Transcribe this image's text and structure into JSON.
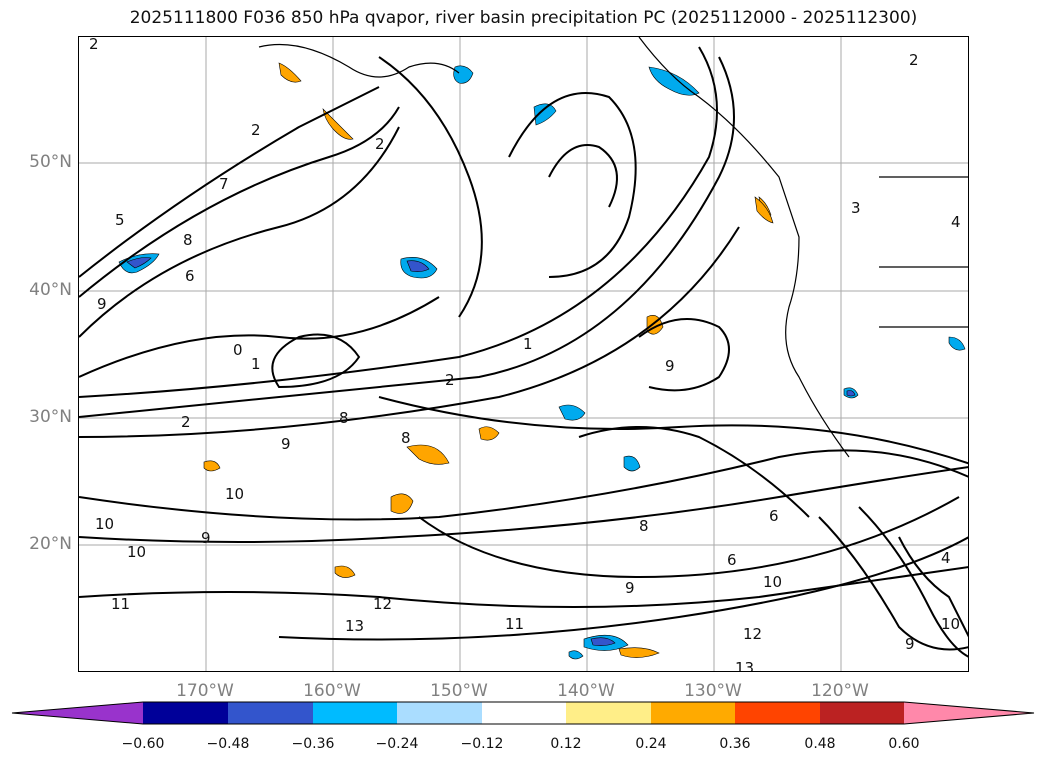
{
  "title": "2025111800 F036 850 hPa qvapor, river basin precipitation PC (2025112000 - 2025112300)",
  "lat_labels": [
    "50°N",
    "40°N",
    "30°N",
    "20°N"
  ],
  "lon_labels": [
    "170°W",
    "160°W",
    "150°W",
    "140°W",
    "130°W",
    "120°W"
  ],
  "colorbar": {
    "tick_labels": [
      "−0.60",
      "−0.48",
      "−0.36",
      "−0.24",
      "−0.12",
      "0.12",
      "0.24",
      "0.36",
      "0.48",
      "0.60"
    ],
    "under_color": "#9933cc",
    "over_color": "#ff88aa",
    "colors": [
      "#000099",
      "#3355cc",
      "#00bbff",
      "#aaddff",
      "#ffffff",
      "#ffee88",
      "#ffaa00",
      "#ff4400",
      "#bb2222"
    ]
  },
  "contour_labels": [
    "2",
    "2",
    "2",
    "2",
    "7",
    "5",
    "8",
    "6",
    "9",
    "0",
    "1",
    "2",
    "8",
    "9",
    "10",
    "10",
    "10",
    "9",
    "11",
    "2",
    "1",
    "9",
    "8",
    "12",
    "13",
    "11",
    "6",
    "9",
    "8",
    "6",
    "10",
    "12",
    "13",
    "9",
    "10",
    "3",
    "4",
    "4"
  ],
  "colors": {
    "shade_blue": "#00aaee",
    "shade_lightblue": "#99ccff",
    "shade_orange": "#ffa500",
    "shade_red": "#ff4400",
    "gridline": "#aaaaaa",
    "axis_label": "#808080"
  }
}
